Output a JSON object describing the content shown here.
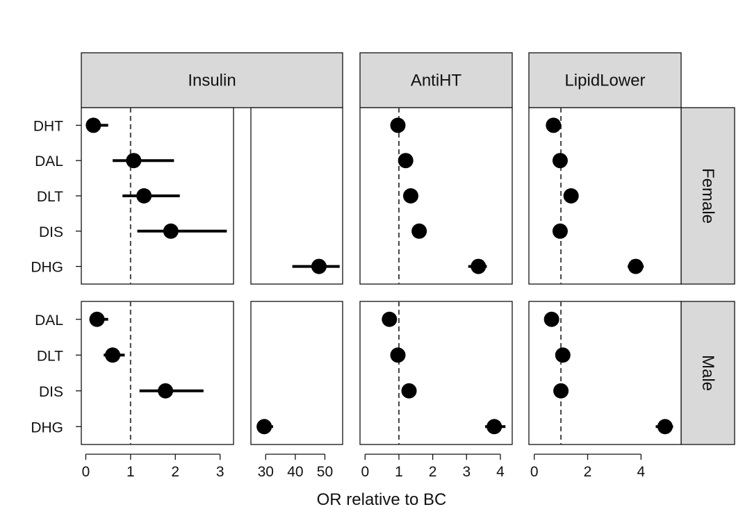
{
  "chart_data": {
    "type": "forest",
    "xlabel": "OR relative to BC",
    "reference_line": 1,
    "columns": [
      {
        "label": "Insulin",
        "sub_axes": [
          {
            "ticks": [
              0,
              1,
              2,
              3
            ],
            "tick_labels": [
              "0",
              "1",
              "2",
              "3"
            ],
            "range": [
              -0.1,
              3.3
            ]
          },
          {
            "ticks": [
              30,
              40,
              50
            ],
            "tick_labels": [
              "30",
              "40",
              "50"
            ],
            "range": [
              25,
              56
            ]
          }
        ]
      },
      {
        "label": "AntiHT",
        "sub_axes": [
          {
            "ticks": [
              0,
              1,
              2,
              3,
              4
            ],
            "tick_labels": [
              "0",
              "1",
              "2",
              "3",
              "4"
            ],
            "range": [
              -0.15,
              4.35
            ]
          }
        ]
      },
      {
        "label": "LipidLower",
        "sub_axes": [
          {
            "ticks": [
              0,
              2,
              4
            ],
            "tick_labels": [
              "0",
              "2",
              "4"
            ],
            "range": [
              -0.2,
              5.5
            ]
          }
        ]
      }
    ],
    "rows": [
      {
        "label": "Female",
        "groups": [
          "DHT",
          "DAL",
          "DLT",
          "DIS",
          "DHG"
        ],
        "points": [
          {
            "group": "DHT",
            "col": 0,
            "or": 0.17,
            "lo": 0.05,
            "hi": 0.5
          },
          {
            "group": "DAL",
            "col": 0,
            "or": 1.07,
            "lo": 0.6,
            "hi": 1.97
          },
          {
            "group": "DLT",
            "col": 0,
            "or": 1.3,
            "lo": 0.82,
            "hi": 2.1
          },
          {
            "group": "DIS",
            "col": 0,
            "or": 1.9,
            "lo": 1.15,
            "hi": 3.15
          },
          {
            "group": "DHG",
            "col": 0,
            "or": 48,
            "lo": 39,
            "hi": 55
          },
          {
            "group": "DHT",
            "col": 1,
            "or": 0.97,
            "lo": 0.92,
            "hi": 1.02
          },
          {
            "group": "DAL",
            "col": 1,
            "or": 1.2,
            "lo": 1.13,
            "hi": 1.27
          },
          {
            "group": "DLT",
            "col": 1,
            "or": 1.35,
            "lo": 1.28,
            "hi": 1.42
          },
          {
            "group": "DIS",
            "col": 1,
            "or": 1.6,
            "lo": 1.52,
            "hi": 1.68
          },
          {
            "group": "DHG",
            "col": 1,
            "or": 3.35,
            "lo": 3.05,
            "hi": 3.6
          },
          {
            "group": "DHT",
            "col": 2,
            "or": 0.72,
            "lo": 0.65,
            "hi": 0.79
          },
          {
            "group": "DAL",
            "col": 2,
            "or": 0.97,
            "lo": 0.9,
            "hi": 1.04
          },
          {
            "group": "DLT",
            "col": 2,
            "or": 1.38,
            "lo": 1.3,
            "hi": 1.46
          },
          {
            "group": "DIS",
            "col": 2,
            "or": 0.97,
            "lo": 0.9,
            "hi": 1.04
          },
          {
            "group": "DHG",
            "col": 2,
            "or": 3.8,
            "lo": 3.5,
            "hi": 4.1
          }
        ]
      },
      {
        "label": "Male",
        "groups": [
          "DAL",
          "DLT",
          "DIS",
          "DHG"
        ],
        "points": [
          {
            "group": "DAL",
            "col": 0,
            "or": 0.25,
            "lo": 0.13,
            "hi": 0.5
          },
          {
            "group": "DLT",
            "col": 0,
            "or": 0.6,
            "lo": 0.4,
            "hi": 0.87
          },
          {
            "group": "DIS",
            "col": 0,
            "or": 1.78,
            "lo": 1.2,
            "hi": 2.63
          },
          {
            "group": "DHG",
            "col": 0,
            "or": 29.5,
            "lo": 27,
            "hi": 32.5
          },
          {
            "group": "DAL",
            "col": 1,
            "or": 0.72,
            "lo": 0.65,
            "hi": 0.79
          },
          {
            "group": "DLT",
            "col": 1,
            "or": 0.97,
            "lo": 0.9,
            "hi": 1.04
          },
          {
            "group": "DIS",
            "col": 1,
            "or": 1.3,
            "lo": 1.22,
            "hi": 1.38
          },
          {
            "group": "DHG",
            "col": 1,
            "or": 3.82,
            "lo": 3.55,
            "hi": 4.15
          },
          {
            "group": "DAL",
            "col": 2,
            "or": 0.65,
            "lo": 0.58,
            "hi": 0.72
          },
          {
            "group": "DLT",
            "col": 2,
            "or": 1.07,
            "lo": 1.0,
            "hi": 1.14
          },
          {
            "group": "DIS",
            "col": 2,
            "or": 1.0,
            "lo": 0.93,
            "hi": 1.07
          },
          {
            "group": "DHG",
            "col": 2,
            "or": 4.9,
            "lo": 4.55,
            "hi": 5.2
          }
        ]
      }
    ]
  }
}
